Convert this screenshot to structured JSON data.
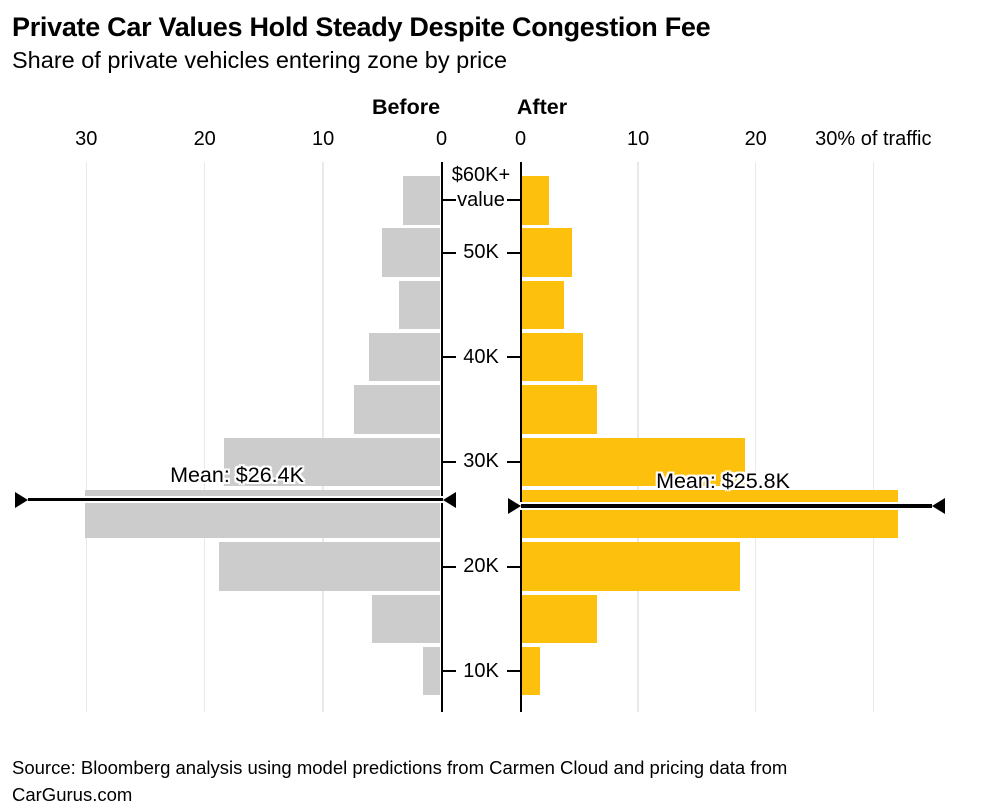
{
  "header": {
    "title": "Private Car Values Hold Steady Despite Congestion Fee",
    "subtitle": "Share of private vehicles entering zone by price"
  },
  "chart_data": {
    "type": "bar",
    "subtype": "diverging_population_pyramid",
    "title": "Private Car Values Hold Steady Despite Congestion Fee",
    "subtitle": "Share of private vehicles entering zone by price",
    "unit": "% of traffic",
    "grid": true,
    "x_axis": {
      "left_tick_labels": [
        "30",
        "20",
        "10",
        "0"
      ],
      "left_tick_values": [
        30,
        20,
        10,
        0
      ],
      "right_tick_labels": [
        "0",
        "10",
        "20",
        "30% of traffic"
      ],
      "right_tick_values": [
        0,
        10,
        20,
        30
      ],
      "gridline_values": [
        10,
        20,
        30
      ],
      "xlim": [
        0,
        33
      ]
    },
    "y_axis": {
      "orientation": "car value, high at top",
      "visible_tick_labels": [
        "$60K+ value",
        "50K",
        "40K",
        "30K",
        "20K",
        "10K"
      ]
    },
    "rows": [
      {
        "labels": [
          "$60K+",
          "value"
        ],
        "before": 3.2,
        "after": 2.3
      },
      {
        "labels": [
          "50K"
        ],
        "before": 4.9,
        "after": 4.3
      },
      {
        "labels": null,
        "before": 3.5,
        "after": 3.6
      },
      {
        "labels": [
          "40K"
        ],
        "before": 6.0,
        "after": 5.2
      },
      {
        "labels": null,
        "before": 7.3,
        "after": 6.4
      },
      {
        "labels": [
          "30K"
        ],
        "before": 18.3,
        "after": 19.0
      },
      {
        "labels": null,
        "before": 30.0,
        "after": 32.0
      },
      {
        "labels": [
          "20K"
        ],
        "before": 18.7,
        "after": 18.6
      },
      {
        "labels": null,
        "before": 5.8,
        "after": 6.4
      },
      {
        "labels": [
          "10K"
        ],
        "before": 1.5,
        "after": 1.6
      }
    ],
    "series": [
      {
        "name": "Before",
        "color": "#CCCCCC",
        "mean_label": "Mean: $26.4K",
        "mean_value_thousands": 26.4
      },
      {
        "name": "After",
        "color": "#FDC10D",
        "mean_label": "Mean: $25.8K",
        "mean_value_thousands": 25.8
      }
    ],
    "colors": {
      "before_bar": "#CCCCCC",
      "after_bar": "#FDC10D",
      "grid": "#E9E9E9",
      "axis": "#000000",
      "background": "#FFFFFF",
      "text": "#000000"
    }
  },
  "footer": {
    "source": "Source: Bloomberg analysis using model predictions from Carmen Cloud and pricing data from CarGurus.com"
  }
}
